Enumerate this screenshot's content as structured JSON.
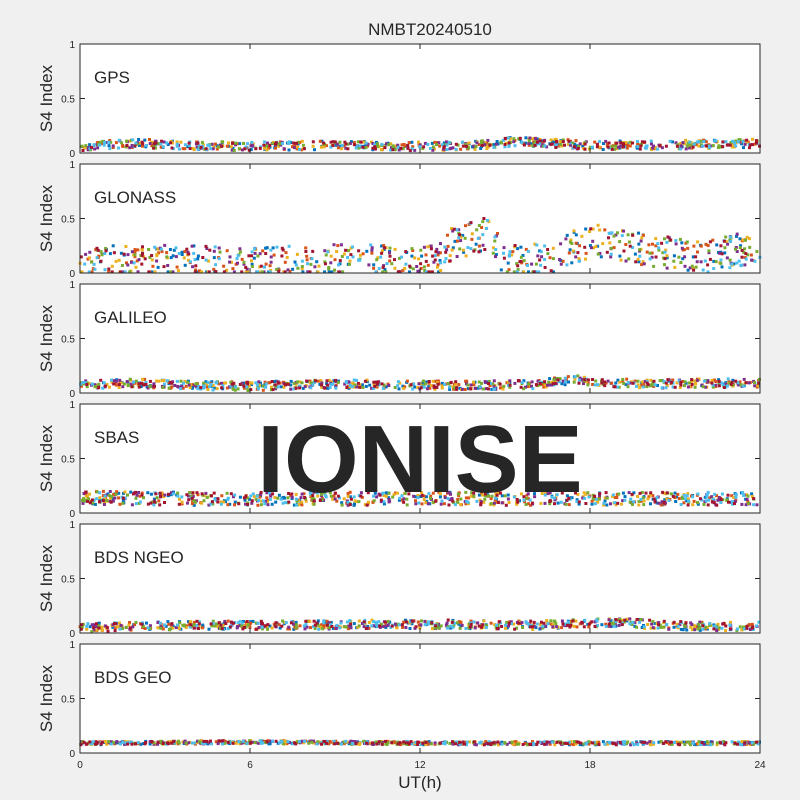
{
  "title": "NMBT20240510",
  "watermark": "IONISE",
  "colors": {
    "background": "#f0f0f0",
    "axes_bg": "#ffffff",
    "axis": "#262626",
    "watermark": "#dcdcdc"
  },
  "chart_data": {
    "type": "scatter",
    "xlabel": "UT(h)",
    "ylabel": "S4 Index",
    "xlim": [
      0,
      24
    ],
    "ylim": [
      0,
      1
    ],
    "xticks": [
      "0",
      "6",
      "12",
      "18",
      "24"
    ],
    "yticks": [
      "0",
      "0.5",
      "1"
    ],
    "grid": false,
    "series_colors": [
      "#0072BD",
      "#D95319",
      "#EDB120",
      "#7E2F8E",
      "#77AC30",
      "#4DBEEE",
      "#A2142F"
    ],
    "panels": [
      {
        "name": "GPS",
        "profile": {
          "x": [
            0,
            2,
            4,
            6,
            8,
            10,
            12,
            14,
            15.5,
            18,
            20,
            22,
            24
          ],
          "y": [
            0.06,
            0.09,
            0.07,
            0.06,
            0.07,
            0.07,
            0.06,
            0.07,
            0.11,
            0.07,
            0.07,
            0.08,
            0.09
          ]
        },
        "spread": 0.04
      },
      {
        "name": "GLONASS",
        "profile": {
          "x": [
            0,
            3,
            6,
            8,
            10.5,
            11,
            12.5,
            13,
            14.5,
            15,
            16.5,
            17.5,
            18.5,
            20,
            22,
            24
          ],
          "y": [
            0.1,
            0.11,
            0.08,
            0.12,
            0.12,
            0.08,
            0.1,
            0.25,
            0.38,
            0.1,
            0.12,
            0.25,
            0.3,
            0.2,
            0.15,
            0.25
          ]
        },
        "spread": 0.15
      },
      {
        "name": "GALILEO",
        "profile": {
          "x": [
            0,
            2,
            4,
            6,
            8,
            10,
            12,
            14,
            16,
            17.5,
            18,
            20,
            22,
            24
          ],
          "y": [
            0.08,
            0.09,
            0.07,
            0.06,
            0.08,
            0.08,
            0.07,
            0.07,
            0.08,
            0.12,
            0.1,
            0.08,
            0.09,
            0.09
          ]
        },
        "spread": 0.04
      },
      {
        "name": "SBAS",
        "profile": {
          "x": [
            0,
            4,
            8,
            12,
            16,
            20,
            24
          ],
          "y": [
            0.14,
            0.13,
            0.13,
            0.13,
            0.13,
            0.13,
            0.13
          ]
        },
        "spread": 0.06
      },
      {
        "name": "BDS NGEO",
        "profile": {
          "x": [
            0,
            2,
            4,
            6,
            8,
            10,
            12,
            14,
            16,
            18,
            19,
            20,
            22,
            24
          ],
          "y": [
            0.05,
            0.06,
            0.07,
            0.07,
            0.07,
            0.08,
            0.08,
            0.08,
            0.07,
            0.09,
            0.1,
            0.08,
            0.06,
            0.06
          ]
        },
        "spread": 0.04
      },
      {
        "name": "BDS GEO",
        "profile": {
          "x": [
            0,
            6,
            12,
            18,
            24
          ],
          "y": [
            0.09,
            0.1,
            0.09,
            0.09,
            0.09
          ]
        },
        "spread": 0.015
      }
    ]
  }
}
